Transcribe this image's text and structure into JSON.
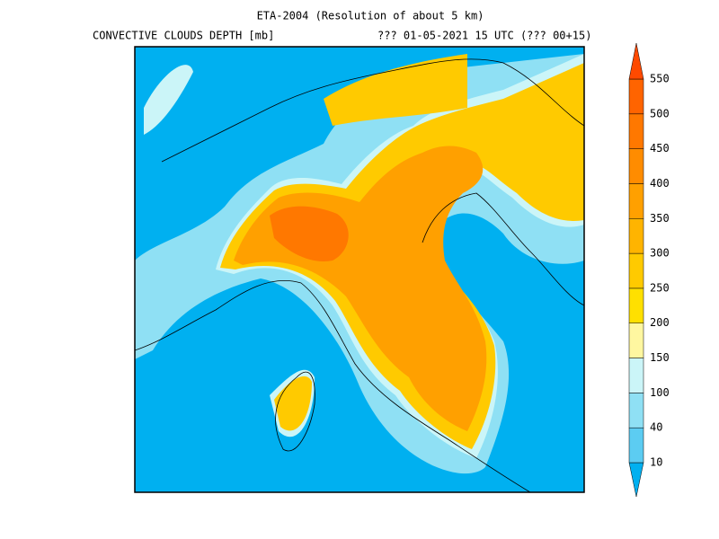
{
  "header": {
    "title": "ETA-2004 (Resolution of about 5 km)",
    "variable": "CONVECTIVE CLOUDS DEPTH [mb]",
    "valid_time": "??? 01-05-2021 15 UTC (??? 00+15)"
  },
  "colorbar": {
    "levels": [
      10,
      40,
      100,
      150,
      200,
      250,
      300,
      350,
      400,
      450,
      500,
      550
    ],
    "colors": [
      "#00b0f0",
      "#5cccf2",
      "#8fe0f4",
      "#cbf5f8",
      "#fff7a0",
      "#ffe000",
      "#ffca00",
      "#ffb400",
      "#ffa000",
      "#ff8c00",
      "#ff7800",
      "#ff6400",
      "#ff4a00"
    ]
  }
}
